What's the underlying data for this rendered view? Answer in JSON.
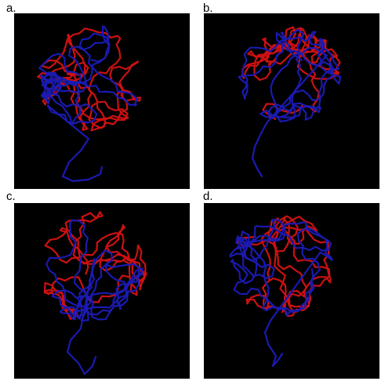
{
  "panels": [
    {
      "id": "a",
      "label": "a."
    },
    {
      "id": "b",
      "label": "b."
    },
    {
      "id": "c",
      "label": "c."
    },
    {
      "id": "d",
      "label": "d."
    }
  ],
  "colors": {
    "background": "#000000",
    "structure_1": "#cc1111",
    "structure_2": "#1a1ab0"
  }
}
